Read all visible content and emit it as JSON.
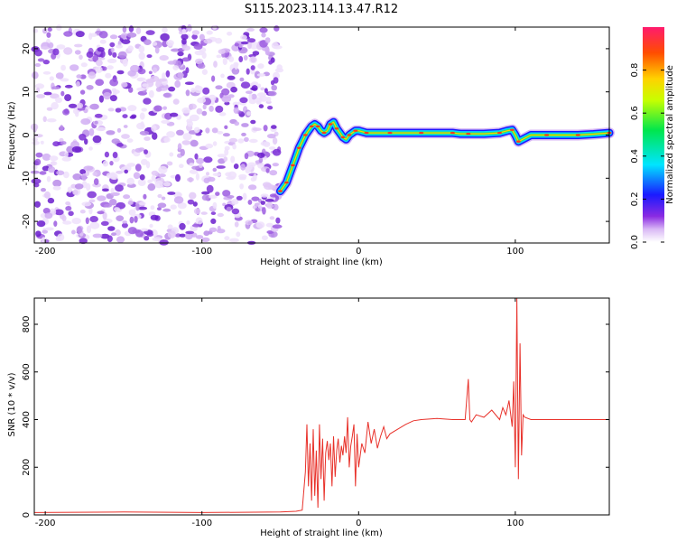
{
  "title": "S115.2023.114.13.47.R12",
  "chart_data": [
    {
      "type": "heatmap",
      "xlabel": "Height of straight line (km)",
      "ylabel": "Frequency (Hz)",
      "xlim": [
        -207,
        160
      ],
      "ylim": [
        -25,
        25
      ],
      "xticks": [
        -200,
        -100,
        0,
        100
      ],
      "yticks": [
        -20,
        -10,
        0,
        10,
        20
      ],
      "noise_region": {
        "x": [
          -207,
          -50
        ],
        "y": [
          -25,
          25
        ]
      },
      "ridge": {
        "x": [
          -50,
          -48,
          -46,
          -44,
          -42,
          -40,
          -38,
          -36,
          -34,
          -32,
          -30,
          -28,
          -26,
          -24,
          -22,
          -20,
          -18,
          -16,
          -14,
          -12,
          -10,
          -8,
          -6,
          -4,
          -2,
          0,
          5,
          10,
          20,
          30,
          40,
          50,
          60,
          65,
          70,
          80,
          90,
          95,
          98,
          100,
          102,
          110,
          120,
          130,
          140,
          150,
          160
        ],
        "y": [
          -13,
          -12,
          -11,
          -9,
          -7,
          -5,
          -3,
          -1.5,
          0,
          1,
          2,
          2.5,
          2,
          1,
          0.5,
          1,
          2.5,
          3,
          1.5,
          0.5,
          -0.5,
          -1,
          0,
          0.5,
          1,
          1,
          0.5,
          0.5,
          0.5,
          0.5,
          0.5,
          0.5,
          0.5,
          0.3,
          0.3,
          0.3,
          0.5,
          1,
          1.2,
          0,
          -1.5,
          0,
          0,
          0,
          0,
          0.2,
          0.5
        ]
      },
      "colorbar": {
        "label": "Normalized spectral amplitude",
        "ticks": [
          0.0,
          0.2,
          0.4,
          0.6,
          0.8
        ],
        "range": [
          0,
          1
        ]
      }
    },
    {
      "type": "line",
      "xlabel": "Height of straight line (km)",
      "ylabel": "SNR (10 * v/v)",
      "xlim": [
        -207,
        160
      ],
      "ylim": [
        0,
        910
      ],
      "xticks": [
        -200,
        -100,
        0,
        100
      ],
      "yticks": [
        0,
        200,
        400,
        600,
        800
      ],
      "color": "#e8312a",
      "series": [
        {
          "x": [
            -207,
            -150,
            -100,
            -50,
            -40,
            -36,
            -34,
            -33,
            -32,
            -31,
            -30,
            -29,
            -28,
            -27,
            -26,
            -25,
            -24,
            -23,
            -22,
            -21,
            -20,
            -19,
            -18,
            -17,
            -16,
            -15,
            -14,
            -13,
            -12,
            -11,
            -10,
            -9,
            -8,
            -7,
            -6,
            -5,
            -4,
            -3,
            -2,
            -1,
            0,
            2,
            4,
            6,
            8,
            10,
            12,
            14,
            16,
            18,
            20,
            25,
            30,
            35,
            40,
            50,
            60,
            68,
            70,
            71,
            72,
            75,
            80,
            85,
            90,
            92,
            94,
            96,
            98,
            99,
            100,
            101,
            102,
            103,
            104,
            105,
            106,
            110,
            120,
            130,
            140,
            150,
            158,
            160
          ],
          "y": [
            10,
            12,
            10,
            12,
            15,
            20,
            180,
            380,
            120,
            300,
            60,
            360,
            80,
            270,
            30,
            380,
            150,
            320,
            60,
            260,
            310,
            230,
            300,
            120,
            330,
            160,
            270,
            320,
            220,
            290,
            250,
            330,
            260,
            410,
            200,
            290,
            330,
            380,
            120,
            340,
            200,
            300,
            260,
            390,
            300,
            360,
            280,
            330,
            370,
            320,
            340,
            360,
            380,
            395,
            400,
            405,
            400,
            400,
            570,
            400,
            390,
            420,
            410,
            440,
            400,
            450,
            420,
            480,
            370,
            560,
            200,
            910,
            150,
            720,
            250,
            420,
            410,
            400,
            400,
            400,
            400,
            400,
            400,
            400
          ]
        }
      ]
    }
  ]
}
